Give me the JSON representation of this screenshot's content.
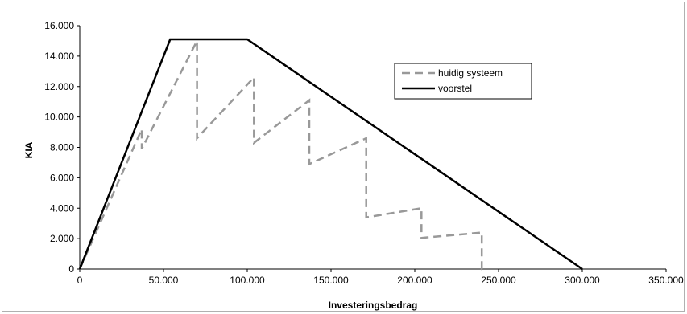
{
  "chart_data": {
    "type": "line",
    "xlabel": "Investeringsbedrag",
    "ylabel": "KIA",
    "xlim": [
      0,
      350000
    ],
    "ylim": [
      0,
      16000
    ],
    "x_ticks": [
      0,
      50000,
      100000,
      150000,
      200000,
      250000,
      300000,
      350000
    ],
    "x_tick_labels": [
      "0",
      "50.000",
      "100.000",
      "150.000",
      "200.000",
      "250.000",
      "300.000",
      "350.000"
    ],
    "y_ticks": [
      0,
      2000,
      4000,
      6000,
      8000,
      10000,
      12000,
      14000,
      16000
    ],
    "y_tick_labels": [
      "0",
      "2.000",
      "4.000",
      "6.000",
      "8.000",
      "10.000",
      "12.000",
      "14.000",
      "16.000"
    ],
    "grid": false,
    "legend_position": "top-right",
    "series": [
      {
        "name": "huidig systeem",
        "style": "dashed",
        "color": "#999999",
        "points": [
          [
            0,
            0
          ],
          [
            37000,
            9200
          ],
          [
            37000,
            7900
          ],
          [
            70000,
            15000
          ],
          [
            70000,
            8600
          ],
          [
            104000,
            12600
          ],
          [
            104000,
            8300
          ],
          [
            137000,
            11100
          ],
          [
            137000,
            6900
          ],
          [
            171000,
            8600
          ],
          [
            171000,
            3400
          ],
          [
            204000,
            4000
          ],
          [
            204000,
            2050
          ],
          [
            240000,
            2400
          ],
          [
            240000,
            0
          ],
          [
            243000,
            0
          ]
        ]
      },
      {
        "name": "voorstel",
        "style": "solid",
        "color": "#000000",
        "points": [
          [
            0,
            0
          ],
          [
            54000,
            15100
          ],
          [
            100000,
            15100
          ],
          [
            300000,
            0
          ]
        ]
      }
    ]
  }
}
